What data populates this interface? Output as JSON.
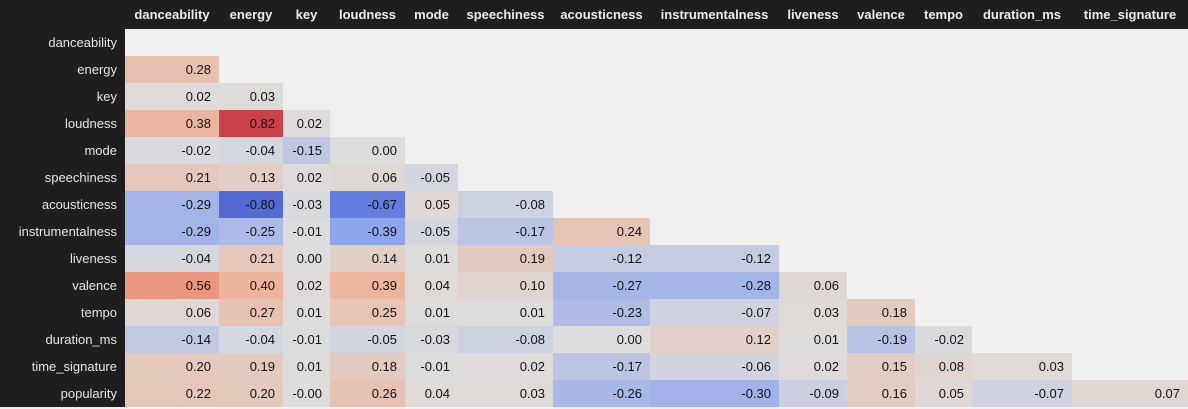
{
  "chart_data": {
    "type": "heatmap",
    "columns": [
      "danceability",
      "energy",
      "key",
      "loudness",
      "mode",
      "speechiness",
      "acousticness",
      "instrumentalness",
      "liveness",
      "valence",
      "tempo",
      "duration_ms",
      "time_signature"
    ],
    "rows": [
      "danceability",
      "energy",
      "key",
      "loudness",
      "mode",
      "speechiness",
      "acousticness",
      "instrumentalness",
      "liveness",
      "valence",
      "tempo",
      "duration_ms",
      "time_signature",
      "popularity"
    ],
    "values": [
      [],
      [
        "0.28"
      ],
      [
        "0.02",
        "0.03"
      ],
      [
        "0.38",
        "0.82",
        "0.02"
      ],
      [
        "-0.02",
        "-0.04",
        "-0.15",
        "0.00"
      ],
      [
        "0.21",
        "0.13",
        "0.02",
        "0.06",
        "-0.05"
      ],
      [
        "-0.29",
        "-0.80",
        "-0.03",
        "-0.67",
        "0.05",
        "-0.08"
      ],
      [
        "-0.29",
        "-0.25",
        "-0.01",
        "-0.39",
        "-0.05",
        "-0.17",
        "0.24"
      ],
      [
        "-0.04",
        "0.21",
        "0.00",
        "0.14",
        "0.01",
        "0.19",
        "-0.12",
        "-0.12"
      ],
      [
        "0.56",
        "0.40",
        "0.02",
        "0.39",
        "0.04",
        "0.10",
        "-0.27",
        "-0.28",
        "0.06"
      ],
      [
        "0.06",
        "0.27",
        "0.01",
        "0.25",
        "0.01",
        "0.01",
        "-0.23",
        "-0.07",
        "0.03",
        "0.18"
      ],
      [
        "-0.14",
        "-0.04",
        "-0.01",
        "-0.05",
        "-0.03",
        "-0.08",
        "0.00",
        "0.12",
        "0.01",
        "-0.19",
        "-0.02"
      ],
      [
        "0.20",
        "0.19",
        "0.01",
        "0.18",
        "-0.01",
        "0.02",
        "-0.17",
        "-0.06",
        "0.02",
        "0.15",
        "0.08",
        "0.03"
      ],
      [
        "0.22",
        "0.20",
        "-0.00",
        "0.26",
        "0.04",
        "0.03",
        "-0.26",
        "-0.30",
        "-0.09",
        "0.16",
        "0.05",
        "-0.07",
        "0.07"
      ]
    ],
    "colormap": "coolwarm",
    "value_range": [
      -1,
      1
    ],
    "colors": {
      "header_bg": "#1e1e1e",
      "header_text": "#ececec",
      "background": "#f0f0f0",
      "negative": "#3b4cc0",
      "neutral": "#dddddd",
      "positive": "#b40426"
    }
  }
}
